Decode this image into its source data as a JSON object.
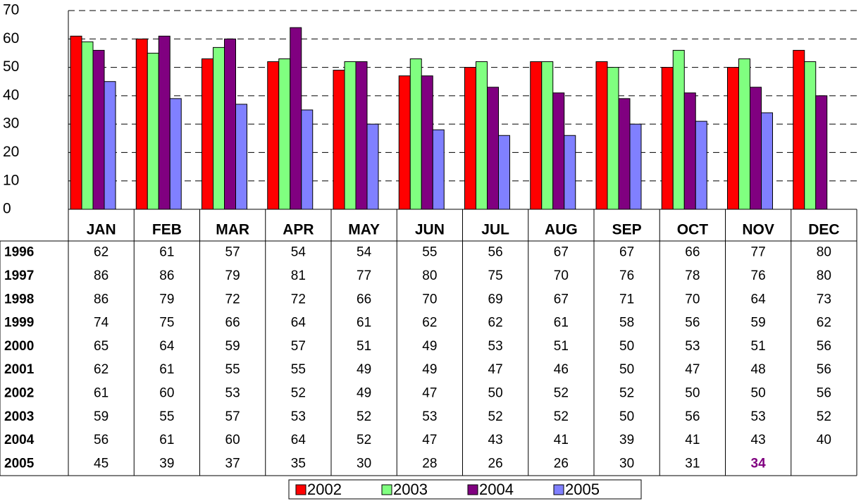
{
  "chart_data": {
    "type": "bar",
    "categories": [
      "JAN",
      "FEB",
      "MAR",
      "APR",
      "MAY",
      "JUN",
      "JUL",
      "AUG",
      "SEP",
      "OCT",
      "NOV",
      "DEC"
    ],
    "series": [
      {
        "name": "2002",
        "color": "#ff0000",
        "values": [
          61,
          60,
          53,
          52,
          49,
          47,
          50,
          52,
          52,
          50,
          50,
          56
        ]
      },
      {
        "name": "2003",
        "color": "#80ff80",
        "values": [
          59,
          55,
          57,
          53,
          52,
          53,
          52,
          52,
          50,
          56,
          53,
          52
        ]
      },
      {
        "name": "2004",
        "color": "#800080",
        "values": [
          56,
          61,
          60,
          64,
          52,
          47,
          43,
          41,
          39,
          41,
          43,
          40
        ]
      },
      {
        "name": "2005",
        "color": "#8080ff",
        "values": [
          45,
          39,
          37,
          35,
          30,
          28,
          26,
          26,
          30,
          31,
          34,
          null
        ]
      }
    ],
    "ylim": [
      0,
      70
    ],
    "yticks": [
      0,
      10,
      20,
      30,
      40,
      50,
      60,
      70
    ],
    "grid": true,
    "legend": "bottom",
    "data_table": {
      "rows": [
        {
          "name": "1996",
          "values": [
            62,
            61,
            57,
            54,
            54,
            55,
            56,
            67,
            67,
            66,
            77,
            80
          ]
        },
        {
          "name": "1997",
          "values": [
            86,
            86,
            79,
            81,
            77,
            80,
            75,
            70,
            76,
            78,
            76,
            80
          ]
        },
        {
          "name": "1998",
          "values": [
            86,
            79,
            72,
            72,
            66,
            70,
            69,
            67,
            71,
            70,
            64,
            73
          ]
        },
        {
          "name": "1999",
          "values": [
            74,
            75,
            66,
            64,
            61,
            62,
            62,
            61,
            58,
            56,
            59,
            62
          ]
        },
        {
          "name": "2000",
          "values": [
            65,
            64,
            59,
            57,
            51,
            49,
            53,
            51,
            50,
            53,
            51,
            56
          ]
        },
        {
          "name": "2001",
          "values": [
            62,
            61,
            55,
            55,
            49,
            49,
            47,
            46,
            50,
            47,
            48,
            56
          ]
        },
        {
          "name": "2002",
          "values": [
            61,
            60,
            53,
            52,
            49,
            47,
            50,
            52,
            52,
            50,
            50,
            56
          ]
        },
        {
          "name": "2003",
          "values": [
            59,
            55,
            57,
            53,
            52,
            53,
            52,
            52,
            50,
            56,
            53,
            52
          ]
        },
        {
          "name": "2004",
          "values": [
            56,
            61,
            60,
            64,
            52,
            47,
            43,
            41,
            39,
            41,
            43,
            40
          ]
        },
        {
          "name": "2005",
          "values": [
            45,
            39,
            37,
            35,
            30,
            28,
            26,
            26,
            30,
            31,
            34,
            null
          ]
        }
      ]
    }
  }
}
